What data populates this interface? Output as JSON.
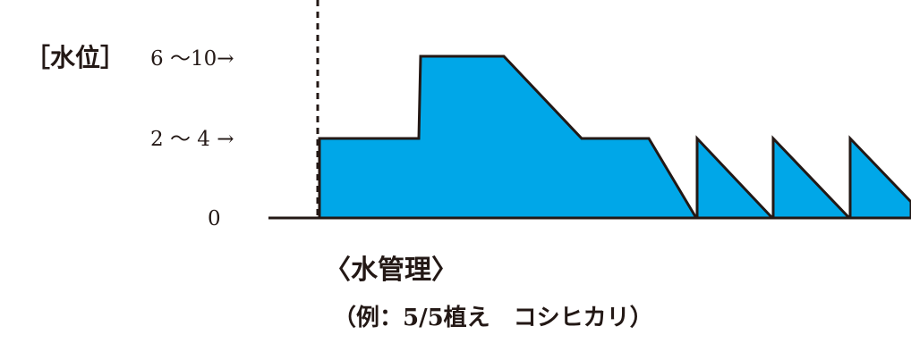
{
  "diagram": {
    "y_axis_label": "［水位］",
    "level_labels": [
      "6 ～10→",
      "2 ～ 4 →",
      "0"
    ],
    "title": "〈水管理〉",
    "subtitle": "（例：5/5植え　コシヒカリ）",
    "colors": {
      "fill": "#00a7e8",
      "stroke": "#231815",
      "text": "#231815"
    }
  }
}
